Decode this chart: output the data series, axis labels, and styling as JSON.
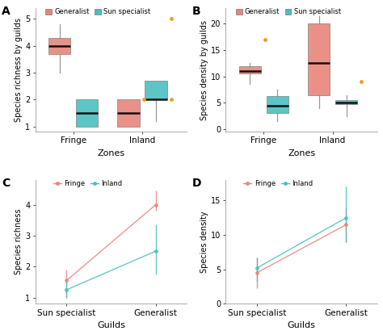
{
  "panel_A": {
    "title": "A",
    "xlabel": "Zones",
    "ylabel": "Species richness by guilds",
    "zones": [
      "Fringe",
      "Inland"
    ],
    "generalist": {
      "fringe": {
        "q1": 3.7,
        "median": 4.0,
        "q3": 4.3,
        "whislo": 3.0,
        "whishi": 4.8,
        "fliers": []
      },
      "inland": {
        "q1": 1.0,
        "median": 1.5,
        "q3": 2.0,
        "whislo": 1.0,
        "whishi": 2.0,
        "fliers": [
          2.0
        ]
      }
    },
    "sun_specialist": {
      "fringe": {
        "q1": 1.0,
        "median": 1.5,
        "q3": 2.0,
        "whislo": 1.0,
        "whishi": 2.0,
        "fliers": []
      },
      "inland": {
        "q1": 2.0,
        "median": 2.0,
        "q3": 2.7,
        "whislo": 1.2,
        "whishi": 2.7,
        "fliers": [
          5.0,
          2.0
        ]
      }
    },
    "ylim": [
      0.8,
      5.4
    ],
    "yticks": [
      1,
      2,
      3,
      4,
      5
    ]
  },
  "panel_B": {
    "title": "B",
    "xlabel": "Zones",
    "ylabel": "Species density by guilds",
    "zones": [
      "Fringe",
      "Inland"
    ],
    "generalist": {
      "fringe": {
        "q1": 10.5,
        "median": 11.0,
        "q3": 12.0,
        "whislo": 8.5,
        "whishi": 12.5,
        "fliers": [
          17.0
        ]
      },
      "inland": {
        "q1": 6.5,
        "median": 12.5,
        "q3": 20.0,
        "whislo": 4.0,
        "whishi": 21.5,
        "fliers": []
      }
    },
    "sun_specialist": {
      "fringe": {
        "q1": 3.0,
        "median": 4.5,
        "q3": 6.2,
        "whislo": 1.5,
        "whishi": 7.5,
        "fliers": []
      },
      "inland": {
        "q1": 4.8,
        "median": 5.0,
        "q3": 5.5,
        "whislo": 2.5,
        "whishi": 6.5,
        "fliers": [
          9.0
        ]
      }
    },
    "ylim": [
      -0.5,
      23
    ],
    "yticks": [
      0,
      5,
      10,
      15,
      20
    ]
  },
  "panel_C": {
    "title": "C",
    "xlabel": "Guilds",
    "ylabel": "Species richness",
    "guilds": [
      "Sun specialist",
      "Generalist"
    ],
    "fringe": {
      "means": [
        1.55,
        4.0
      ],
      "yerr_lo": [
        0.55,
        0.2
      ],
      "yerr_hi": [
        0.35,
        0.45
      ]
    },
    "inland": {
      "means": [
        1.25,
        2.5
      ],
      "yerr_lo": [
        0.25,
        0.75
      ],
      "yerr_hi": [
        0.3,
        0.85
      ]
    },
    "ylim": [
      0.8,
      4.8
    ],
    "yticks": [
      1,
      2,
      3,
      4
    ]
  },
  "panel_D": {
    "title": "D",
    "xlabel": "Guilds",
    "ylabel": "Species density",
    "guilds": [
      "Sun specialist",
      "Generalist"
    ],
    "fringe": {
      "means": [
        4.5,
        11.5
      ],
      "yerr_lo": [
        2.2,
        2.5
      ],
      "yerr_hi": [
        2.2,
        2.5
      ]
    },
    "inland": {
      "means": [
        5.2,
        12.5
      ],
      "yerr_lo": [
        2.0,
        3.5
      ],
      "yerr_hi": [
        1.5,
        4.5
      ]
    },
    "ylim": [
      0,
      18
    ],
    "yticks": [
      0,
      5,
      10,
      15
    ]
  },
  "colors": {
    "generalist": "#E8857A",
    "sun_specialist": "#4BBFBF",
    "fringe_line": "#E8857A",
    "inland_line": "#4BBFBF",
    "outlier": "#E8A020",
    "whisker": "#999999",
    "median": "#111111"
  }
}
